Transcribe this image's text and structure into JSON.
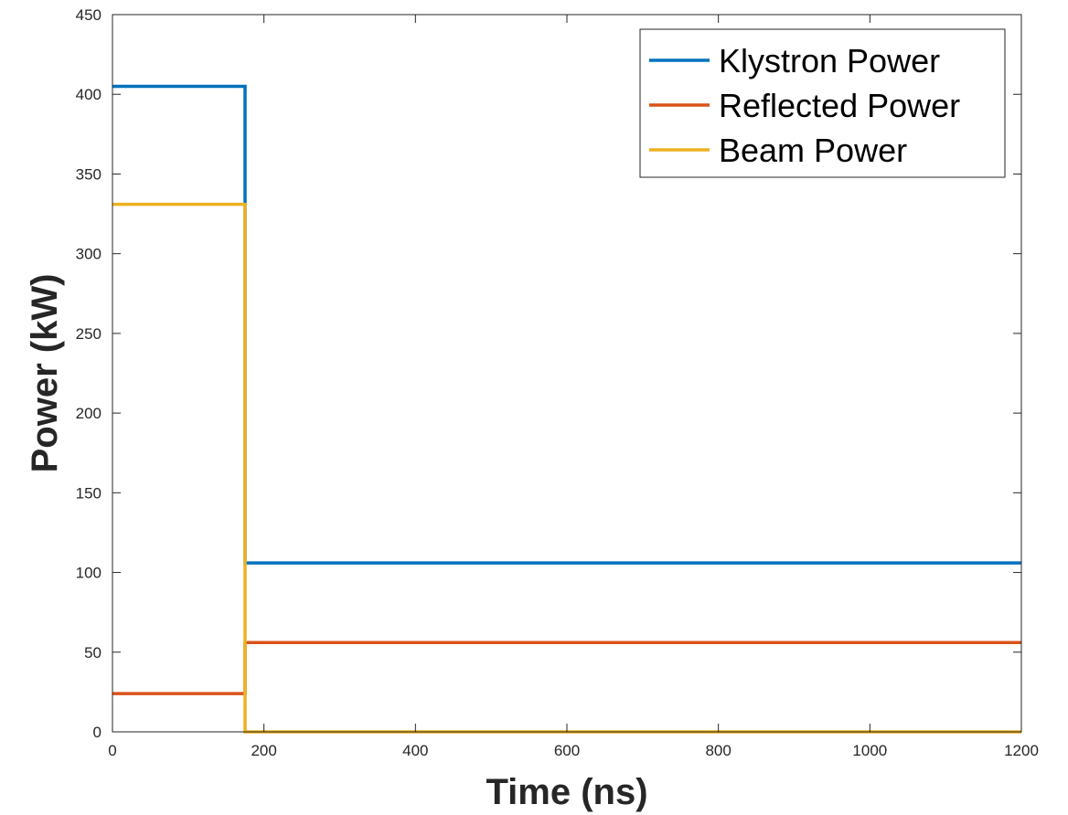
{
  "chart_data": {
    "type": "line",
    "title": "",
    "xlabel": "Time (ns)",
    "ylabel": "Power (kW)",
    "xlim": [
      0,
      1200
    ],
    "ylim": [
      0,
      450
    ],
    "xticks": [
      0,
      200,
      400,
      600,
      800,
      1000,
      1200
    ],
    "yticks": [
      0,
      50,
      100,
      150,
      200,
      250,
      300,
      350,
      400,
      450
    ],
    "grid": false,
    "legend_position": "top-right",
    "series": [
      {
        "name": "Klystron Power",
        "color": "#0072BD",
        "x": [
          0,
          175,
          175,
          1200
        ],
        "y": [
          405,
          405,
          106,
          106
        ]
      },
      {
        "name": "Reflected Power",
        "color": "#D95319",
        "x": [
          0,
          175,
          175,
          1200
        ],
        "y": [
          24,
          24,
          56,
          56
        ]
      },
      {
        "name": "Beam Power",
        "color": "#EDB120",
        "x": [
          0,
          175,
          175,
          1200
        ],
        "y": [
          331,
          331,
          0,
          0
        ]
      }
    ]
  }
}
